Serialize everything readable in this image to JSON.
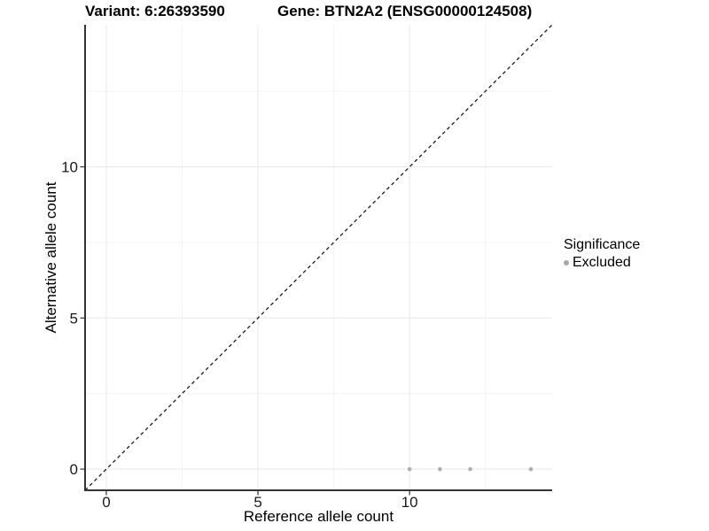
{
  "header": {
    "variant_title": "Variant: 6:26393590",
    "gene_title": "Gene: BTN2A2 (ENSG00000124508)"
  },
  "chart_data": {
    "type": "scatter",
    "titles": [
      "Variant: 6:26393590",
      "Gene: BTN2A2 (ENSG00000124508)"
    ],
    "xlabel": "Reference allele count",
    "ylabel": "Alternative allele count",
    "xlim": [
      -0.7,
      14.7
    ],
    "ylim": [
      -0.7,
      14.7
    ],
    "xticks": [
      0,
      5,
      10
    ],
    "xtick_labels": [
      "0",
      "5",
      "10"
    ],
    "yticks": [
      0,
      5,
      10
    ],
    "ytick_labels": [
      "0",
      "5",
      "10"
    ],
    "minor_ticks": [
      2.5,
      7.5,
      12.5
    ],
    "grid": true,
    "identity_line": {
      "slope": 1,
      "intercept": 0,
      "style": "dashed"
    },
    "series": [
      {
        "name": "Excluded",
        "points": [
          [
            10,
            0
          ],
          [
            11,
            0
          ],
          [
            12,
            0
          ],
          [
            14,
            0
          ]
        ]
      }
    ],
    "legend": {
      "title": "Significance",
      "position": "right",
      "entries": [
        {
          "label": "Excluded",
          "color": "#a8a8a8"
        }
      ]
    }
  },
  "colors": {
    "background": "#ffffff",
    "text": "#000000",
    "axis_line": "#333333",
    "tick_mark": "#333333",
    "grid_major": "#ebebeb",
    "grid_minor": "#f4f4f4",
    "identity_line": "#1a1a1a",
    "point": "#adadad"
  }
}
